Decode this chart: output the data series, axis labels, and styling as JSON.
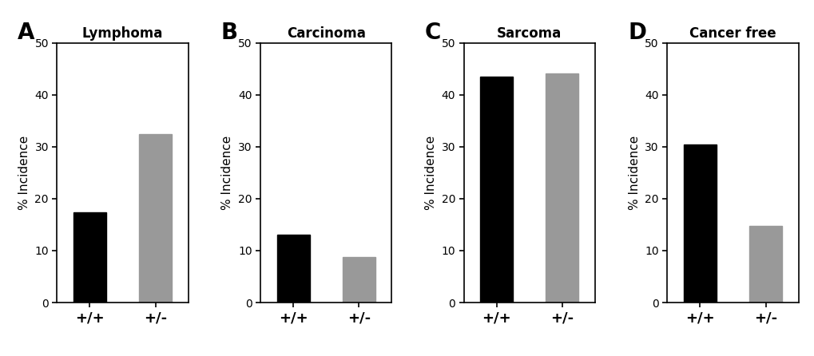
{
  "panels": [
    {
      "label": "A",
      "title": "Lymphoma",
      "values": [
        17.4,
        32.4
      ],
      "categories": [
        "+/+",
        "+/-"
      ],
      "colors": [
        "#000000",
        "#999999"
      ],
      "ylim": [
        0,
        50
      ],
      "yticks": [
        0,
        10,
        20,
        30,
        40,
        50
      ]
    },
    {
      "label": "B",
      "title": "Carcinoma",
      "values": [
        13.0,
        8.8
      ],
      "categories": [
        "+/+",
        "+/-"
      ],
      "colors": [
        "#000000",
        "#999999"
      ],
      "ylim": [
        0,
        50
      ],
      "yticks": [
        0,
        10,
        20,
        30,
        40,
        50
      ]
    },
    {
      "label": "C",
      "title": "Sarcoma",
      "values": [
        43.5,
        44.1
      ],
      "categories": [
        "+/+",
        "+/-"
      ],
      "colors": [
        "#000000",
        "#999999"
      ],
      "ylim": [
        0,
        50
      ],
      "yticks": [
        0,
        10,
        20,
        30,
        40,
        50
      ]
    },
    {
      "label": "D",
      "title": "Cancer free",
      "values": [
        30.4,
        14.7
      ],
      "categories": [
        "+/+",
        "+/-"
      ],
      "colors": [
        "#000000",
        "#999999"
      ],
      "ylim": [
        0,
        50
      ],
      "yticks": [
        0,
        10,
        20,
        30,
        40,
        50
      ]
    }
  ],
  "ylabel": "% Incidence",
  "bar_width": 0.5,
  "figure_bg": "#ffffff",
  "panel_label_fontsize": 20,
  "title_fontsize": 12,
  "tick_fontsize": 10,
  "ylabel_fontsize": 11,
  "xtick_fontsize": 13
}
